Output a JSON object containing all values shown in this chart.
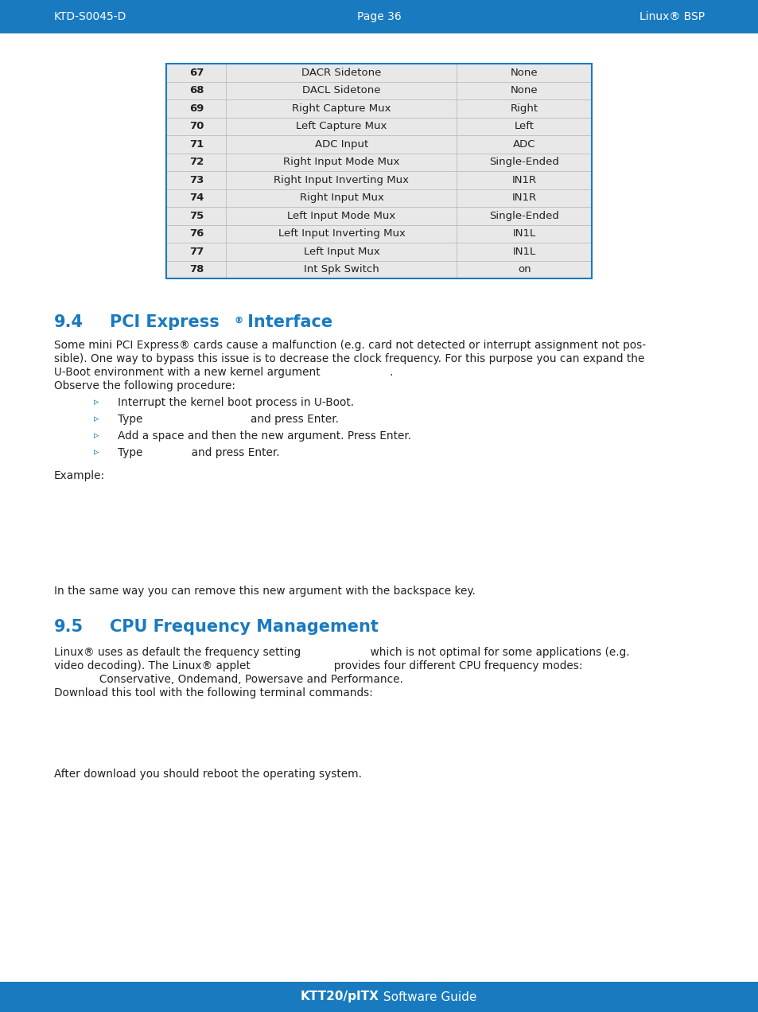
{
  "header_bg": "#1a7abf",
  "header_text_color": "#ffffff",
  "header_left": "KTD-S0045-D",
  "header_center": "Page 36",
  "header_right": "Linux® BSP",
  "footer_bg": "#1a7abf",
  "footer_text": "KTT20/pITX Software Guide",
  "page_bg": "#ffffff",
  "table_rows": [
    [
      "67",
      "DACR Sidetone",
      "None"
    ],
    [
      "68",
      "DACL Sidetone",
      "None"
    ],
    [
      "69",
      "Right Capture Mux",
      "Right"
    ],
    [
      "70",
      "Left Capture Mux",
      "Left"
    ],
    [
      "71",
      "ADC Input",
      "ADC"
    ],
    [
      "72",
      "Right Input Mode Mux",
      "Single-Ended"
    ],
    [
      "73",
      "Right Input Inverting Mux",
      "IN1R"
    ],
    [
      "74",
      "Right Input Mux",
      "IN1R"
    ],
    [
      "75",
      "Left Input Mode Mux",
      "Single-Ended"
    ],
    [
      "76",
      "Left Input Inverting Mux",
      "IN1L"
    ],
    [
      "77",
      "Left Input Mux",
      "IN1L"
    ],
    [
      "78",
      "Int Spk Switch",
      "on"
    ]
  ],
  "table_border_color": "#1a7abf",
  "table_row_bg": "#e8e8e8",
  "table_divider_color": "#bbbbbb",
  "section_color": "#1a7abf",
  "body_color": "#222222",
  "figw": 9.54,
  "figh": 12.72,
  "dpi": 100
}
